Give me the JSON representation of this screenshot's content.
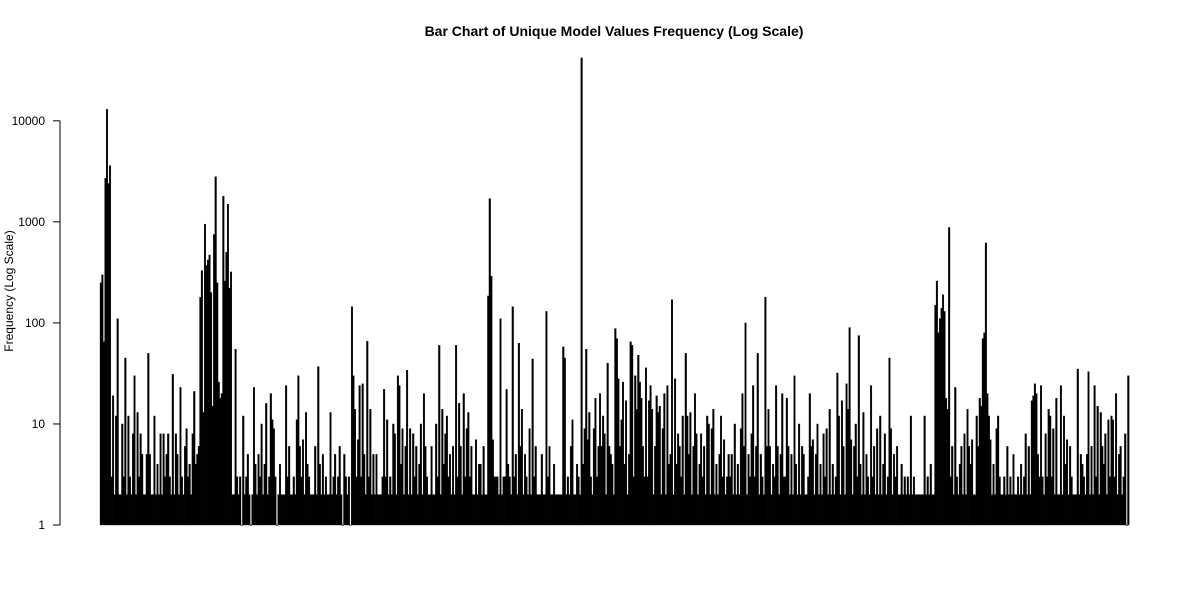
{
  "chart_data": {
    "type": "bar",
    "title": "Bar Chart of Unique Model Values Frequency (Log Scale)",
    "xlabel": "",
    "ylabel": "Frequency (Log Scale)",
    "y_scale": "log",
    "ylim": [
      1,
      40000
    ],
    "y_ticks": [
      1,
      10,
      100,
      1000,
      10000
    ],
    "y_tick_labels": [
      "1",
      "10",
      "100",
      "1000",
      "10000"
    ],
    "x_axis_shown": false,
    "legend": "none",
    "bar_color": "#000000",
    "values": [
      250,
      300,
      65,
      2700,
      13000,
      2400,
      3600,
      3,
      19,
      2,
      12,
      110,
      2,
      2,
      10,
      3,
      45,
      2,
      12,
      3,
      2,
      8,
      30,
      2,
      13,
      3,
      8,
      5,
      2,
      2,
      5,
      50,
      5,
      2,
      2,
      12,
      2,
      4,
      2,
      8,
      2,
      8,
      3,
      5,
      8,
      3,
      2,
      31,
      2,
      8,
      5,
      2,
      23,
      3,
      2,
      6,
      9,
      3,
      4,
      2,
      8,
      21,
      4,
      5,
      6,
      180,
      330,
      13,
      950,
      370,
      420,
      470,
      200,
      15,
      750,
      2800,
      250,
      26,
      18,
      20,
      1800,
      260,
      500,
      1500,
      220,
      320,
      2,
      2,
      55,
      3,
      2,
      3,
      1,
      12,
      2,
      3,
      5,
      2,
      1,
      2,
      23,
      4,
      2,
      5,
      3,
      10,
      2,
      4,
      16,
      2,
      3,
      20,
      11,
      9,
      3,
      1,
      2,
      4,
      2,
      2,
      2,
      24,
      3,
      6,
      2,
      2,
      3,
      2,
      11,
      30,
      6,
      3,
      7,
      2,
      13,
      4,
      3,
      2,
      2,
      2,
      6,
      2,
      37,
      4,
      2,
      5,
      2,
      3,
      2,
      2,
      13,
      2,
      3,
      5,
      2,
      3,
      6,
      2,
      1,
      5,
      3,
      2,
      3,
      1,
      145,
      30,
      14,
      3,
      7,
      24,
      3,
      25,
      5,
      2,
      66,
      3,
      14,
      2,
      5,
      2,
      5,
      2,
      2,
      2,
      3,
      22,
      3,
      11,
      2,
      3,
      2,
      10,
      8,
      2,
      30,
      24,
      4,
      9,
      2,
      6,
      34,
      2,
      9,
      2,
      8,
      3,
      6,
      2,
      4,
      10,
      2,
      20,
      6,
      3,
      2,
      2,
      6,
      2,
      2,
      10,
      3,
      60,
      2,
      14,
      4,
      8,
      12,
      3,
      5,
      2,
      6,
      2,
      60,
      3,
      16,
      6,
      2,
      20,
      3,
      9,
      13,
      3,
      6,
      2,
      2,
      7,
      2,
      4,
      4,
      2,
      6,
      2,
      2,
      185,
      1700,
      290,
      7,
      3,
      3,
      3,
      2,
      110,
      2,
      3,
      3,
      22,
      4,
      3,
      2,
      145,
      3,
      5,
      2,
      63,
      6,
      14,
      2,
      5,
      3,
      2,
      9,
      2,
      44,
      3,
      6,
      2,
      2,
      2,
      5,
      2,
      2,
      130,
      3,
      6,
      2,
      2,
      4,
      2,
      2,
      2,
      2,
      2,
      58,
      45,
      2,
      3,
      2,
      6,
      11,
      2,
      2,
      4,
      3,
      2,
      42000,
      4,
      9,
      55,
      7,
      13,
      3,
      2,
      9,
      18,
      3,
      6,
      20,
      6,
      12,
      8,
      2,
      40,
      6,
      5,
      4,
      2,
      88,
      70,
      28,
      6,
      11,
      26,
      4,
      17,
      2,
      5,
      65,
      60,
      3,
      30,
      14,
      48,
      26,
      18,
      6,
      3,
      36,
      3,
      17,
      24,
      14,
      2,
      6,
      19,
      13,
      15,
      2,
      9,
      20,
      2,
      24,
      4,
      5,
      170,
      2,
      28,
      4,
      8,
      6,
      3,
      12,
      2,
      50,
      12,
      5,
      13,
      2,
      6,
      20,
      8,
      2,
      4,
      8,
      3,
      6,
      2,
      12,
      10,
      2,
      9,
      14,
      2,
      4,
      2,
      5,
      12,
      3,
      7,
      2,
      3,
      5,
      3,
      5,
      2,
      10,
      2,
      4,
      2,
      9,
      20,
      6,
      100,
      2,
      5,
      3,
      8,
      24,
      3,
      6,
      50,
      2,
      5,
      3,
      2,
      180,
      6,
      14,
      6,
      2,
      4,
      3,
      24,
      6,
      2,
      5,
      20,
      3,
      3,
      18,
      6,
      2,
      5,
      2,
      30,
      4,
      2,
      10,
      2,
      6,
      5,
      2,
      2,
      3,
      20,
      6,
      7,
      2,
      5,
      10,
      2,
      4,
      2,
      8,
      3,
      9,
      2,
      14,
      2,
      4,
      2,
      3,
      32,
      12,
      2,
      17,
      6,
      2,
      25,
      14,
      90,
      7,
      2,
      6,
      10,
      3,
      75,
      4,
      2,
      13,
      2,
      5,
      3,
      2,
      24,
      3,
      6,
      2,
      9,
      2,
      12,
      2,
      4,
      8,
      2,
      3,
      45,
      9,
      2,
      5,
      3,
      6,
      2,
      2,
      4,
      2,
      3,
      2,
      3,
      2,
      12,
      2,
      3,
      2,
      2,
      2,
      2,
      2,
      2,
      12,
      2,
      3,
      2,
      4,
      2,
      2,
      150,
      260,
      80,
      110,
      140,
      190,
      130,
      18,
      14,
      880,
      3,
      6,
      2,
      23,
      3,
      2,
      4,
      6,
      2,
      8,
      2,
      14,
      6,
      4,
      7,
      2,
      2,
      12,
      6,
      18,
      15,
      70,
      80,
      620,
      20,
      12,
      7,
      2,
      4,
      2,
      9,
      12,
      3,
      2,
      2,
      3,
      2,
      6,
      2,
      3,
      2,
      5,
      2,
      2,
      3,
      2,
      4,
      2,
      3,
      8,
      2,
      6,
      2,
      17,
      19,
      25,
      20,
      5,
      3,
      24,
      3,
      2,
      8,
      3,
      14,
      12,
      3,
      9,
      2,
      18,
      2,
      2,
      24,
      2,
      12,
      4,
      7,
      2,
      6,
      3,
      2,
      2,
      2,
      35,
      2,
      5,
      4,
      3,
      2,
      5,
      33,
      2,
      6,
      2,
      24,
      3,
      15,
      2,
      13,
      6,
      4,
      8,
      2,
      11,
      3,
      12,
      11,
      3,
      20,
      2,
      5,
      6,
      2,
      3,
      8,
      1,
      30
    ]
  }
}
